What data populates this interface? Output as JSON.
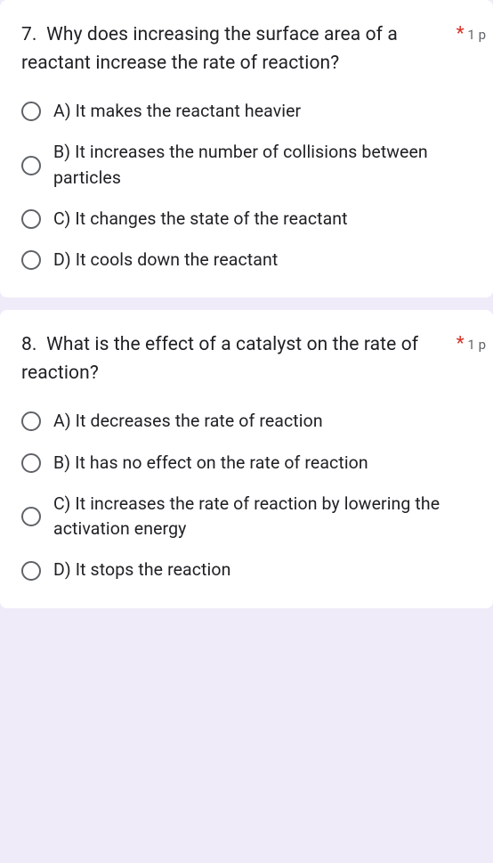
{
  "colors": {
    "page_bg": "#f0ebf8",
    "card_bg": "#ffffff",
    "text_primary": "#202124",
    "text_secondary": "#5f6368",
    "required": "#d93025",
    "radio_border": "#5f6368"
  },
  "typography": {
    "question_fontsize": 21,
    "option_fontsize": 19.5,
    "points_fontsize": 15
  },
  "questions": [
    {
      "number": "7.",
      "text": "Why does increasing the surface area of a reactant increase the rate of reaction?",
      "required_marker": "*",
      "points": "1 p",
      "options": [
        "A) It makes the reactant heavier",
        "B) It increases the number of collisions between particles",
        "C) It changes the state of the reactant",
        "D) It cools down the reactant"
      ]
    },
    {
      "number": "8.",
      "text": "What is the effect of a catalyst on the rate of reaction?",
      "required_marker": "*",
      "points": "1 p",
      "options": [
        "A) It decreases the rate of reaction",
        "B) It has no effect on the rate of reaction",
        "C) It increases the rate of reaction by lowering the activation energy",
        "D) It stops the reaction"
      ]
    }
  ]
}
